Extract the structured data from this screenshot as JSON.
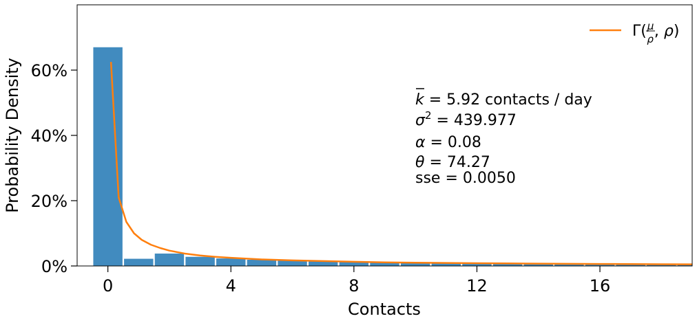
{
  "chart_data": {
    "type": "bar",
    "xlabel": "Contacts",
    "ylabel": "Probability Density",
    "xlim": [
      -1.0,
      19.0
    ],
    "ylim": [
      0,
      0.8
    ],
    "x_ticks": [
      0,
      4,
      8,
      12,
      16
    ],
    "y_ticks": [
      0,
      0.2,
      0.4,
      0.6
    ],
    "y_tick_labels": [
      "0%",
      "20%",
      "40%",
      "60%"
    ],
    "grid": false,
    "legend_position": "top-right",
    "bar_color": "#418bbf",
    "bar_width": 0.95,
    "histogram": {
      "bin_centers": [
        0,
        1,
        2,
        3,
        4,
        5,
        6,
        7,
        8,
        9,
        10,
        11,
        12,
        13,
        14,
        15,
        16,
        17,
        18,
        19
      ],
      "values": [
        0.67,
        0.022,
        0.038,
        0.028,
        0.023,
        0.019,
        0.016,
        0.014,
        0.012,
        0.011,
        0.009,
        0.008,
        0.007,
        0.007,
        0.006,
        0.006,
        0.005,
        0.005,
        0.005,
        0.004
      ]
    },
    "series": [
      {
        "name": "Γ(μ/ρ, ρ)",
        "type": "line",
        "color": "#ff7f0e",
        "x": [
          0.1,
          0.35,
          0.6,
          0.85,
          1.1,
          1.4,
          1.7,
          2.0,
          2.5,
          3.0,
          3.5,
          4.0,
          5.0,
          6.0,
          7.0,
          8.0,
          9.0,
          10.0,
          11.0,
          12.0,
          13.0,
          14.0,
          15.0,
          16.0,
          17.0,
          18.0,
          19.0
        ],
        "y": [
          0.625,
          0.21,
          0.135,
          0.1,
          0.08,
          0.065,
          0.055,
          0.047,
          0.038,
          0.032,
          0.028,
          0.025,
          0.02,
          0.017,
          0.015,
          0.013,
          0.011,
          0.01,
          0.0093,
          0.0085,
          0.0078,
          0.0072,
          0.0066,
          0.0061,
          0.0057,
          0.0053,
          0.005
        ]
      }
    ],
    "annotations": {
      "k_mean_rest": " = 5.92 contacts / day",
      "sigma_rest": " = 439.977",
      "alpha_rest": " = 0.08",
      "theta_rest": " = 74.27",
      "sse": "sse = 0.0050"
    }
  }
}
